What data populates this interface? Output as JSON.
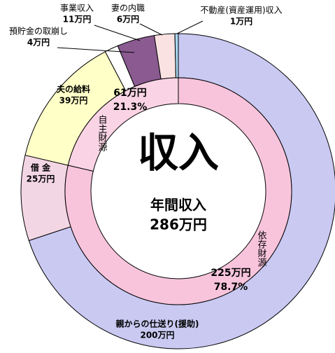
{
  "chart_data": {
    "type": "donut",
    "center_title": "収入",
    "center_label": "年間収入",
    "total": 286,
    "total_label": "286万円",
    "rings": [
      {
        "categories": [
          "親からの仕送り(援助)",
          "借 金",
          "夫の給料",
          "預貯金の取崩し",
          "事業収入",
          "妻の内職",
          "不動産(資産運用)収入"
        ],
        "values": [
          200,
          25,
          39,
          4,
          11,
          6,
          1
        ],
        "value_labels": [
          "200万円",
          "25万円",
          "39万円",
          "4万円",
          "11万円",
          "6万円",
          "1万円"
        ],
        "colors": [
          "#c9c9f2",
          "#f3d6e4",
          "#ffffc8",
          "#ffffff",
          "#8a5a90",
          "#fbe2e2",
          "#a8d8f0"
        ]
      },
      {
        "categories": [
          "依存財源",
          "自主財源"
        ],
        "values": [
          225,
          61
        ],
        "value_labels": [
          "225万円",
          "61万円"
        ],
        "percents": [
          78.7,
          21.3
        ],
        "percent_labels": [
          "78.7%",
          "21.3%"
        ],
        "colors": [
          "#f8c4dc",
          "#fad4e4"
        ]
      }
    ]
  }
}
